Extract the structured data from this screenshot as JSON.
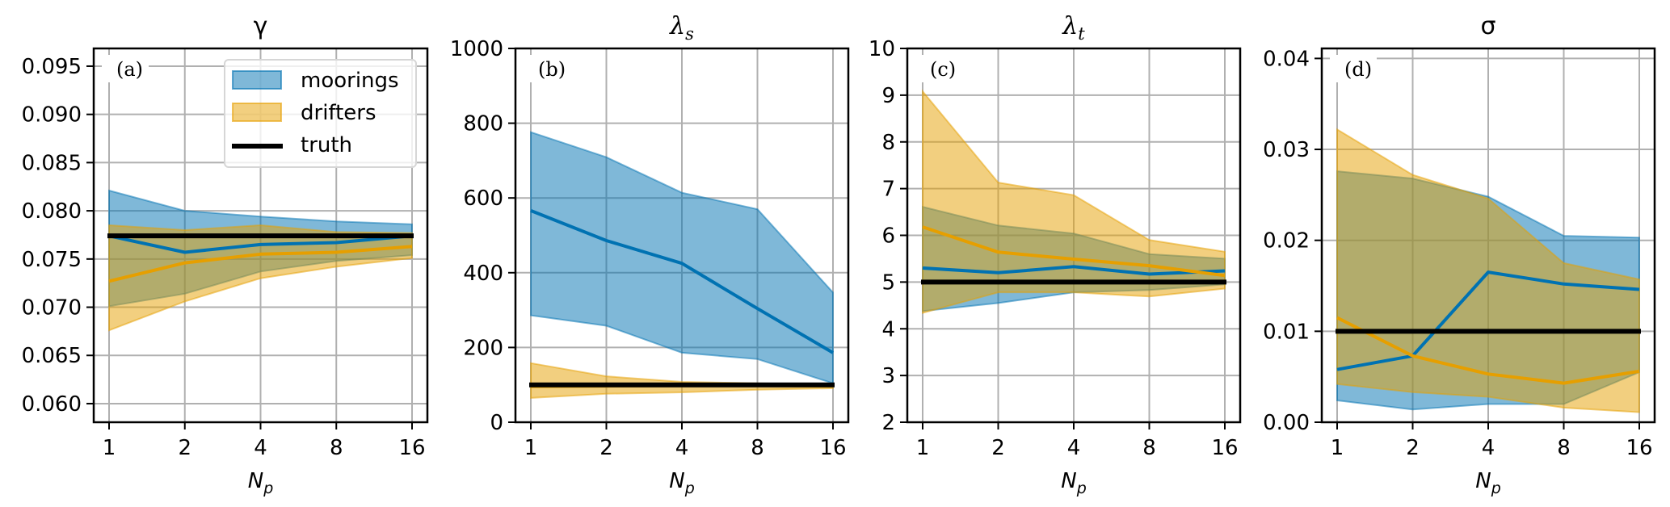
{
  "chart_data": {
    "type": "area",
    "x": [
      1,
      2,
      4,
      8,
      16
    ],
    "x_tick_labels": [
      "1",
      "2",
      "4",
      "8",
      "16"
    ],
    "xscale": "log2",
    "xlabel": "N_p",
    "grid": true,
    "colors": {
      "moorings": "#0072B2",
      "drifters": "#E69F00",
      "truth": "#000000",
      "fill_alpha": 0.5
    },
    "legend": {
      "panel": "a",
      "placement": "upper-right",
      "entries": [
        {
          "label": "moorings",
          "kind": "band",
          "series": "moorings"
        },
        {
          "label": "drifters",
          "kind": "band",
          "series": "drifters"
        },
        {
          "label": "truth",
          "kind": "line",
          "series": "truth"
        }
      ]
    },
    "panels": [
      {
        "id": "a",
        "panel_label": "(a)",
        "title": "γ",
        "title_sub": "",
        "ylim": [
          0.05807,
          0.09684
        ],
        "yticks": [
          0.06,
          0.065,
          0.07,
          0.075,
          0.08,
          0.085,
          0.09,
          0.095
        ],
        "ytick_labels": [
          "0.060",
          "0.065",
          "0.070",
          "0.075",
          "0.080",
          "0.085",
          "0.090",
          "0.095"
        ],
        "truth": 0.0774,
        "series": [
          {
            "name": "moorings",
            "median": [
              0.0774,
              0.0757,
              0.0765,
              0.0767,
              0.0774
            ],
            "lower": [
              0.0701,
              0.0714,
              0.0737,
              0.0748,
              0.0754
            ],
            "upper": [
              0.0821,
              0.08,
              0.0794,
              0.0789,
              0.0786
            ]
          },
          {
            "name": "drifters",
            "median": [
              0.0727,
              0.0746,
              0.0755,
              0.0757,
              0.0763
            ],
            "lower": [
              0.0676,
              0.0706,
              0.073,
              0.0742,
              0.0751
            ],
            "upper": [
              0.0785,
              0.078,
              0.0785,
              0.0778,
              0.0777
            ]
          }
        ]
      },
      {
        "id": "b",
        "panel_label": "(b)",
        "title": "λ",
        "title_sub": "s",
        "ylim": [
          0,
          1000
        ],
        "yticks": [
          0,
          200,
          400,
          600,
          800,
          1000
        ],
        "ytick_labels": [
          "0",
          "200",
          "400",
          "600",
          "800",
          "1000"
        ],
        "truth": 100,
        "series": [
          {
            "name": "moorings",
            "median": [
              566,
              486,
              425,
              304,
              186
            ],
            "lower": [
              286,
              258,
              186,
              169,
              104
            ],
            "upper": [
              776,
              709,
              614,
              570,
              347
            ]
          },
          {
            "name": "drifters",
            "median": [
              96,
              97,
              98,
              98,
              97
            ],
            "lower": [
              65,
              76,
              80,
              87,
              91
            ],
            "upper": [
              158,
              123,
              108,
              104,
              101
            ]
          }
        ]
      },
      {
        "id": "c",
        "panel_label": "(c)",
        "title": "λ",
        "title_sub": "t",
        "ylim": [
          2,
          10
        ],
        "yticks": [
          2,
          3,
          4,
          5,
          6,
          7,
          8,
          9,
          10
        ],
        "ytick_labels": [
          "2",
          "3",
          "4",
          "5",
          "6",
          "7",
          "8",
          "9",
          "10"
        ],
        "truth": 5,
        "series": [
          {
            "name": "moorings",
            "median": [
              5.3,
              5.2,
              5.33,
              5.17,
              5.24
            ],
            "lower": [
              4.38,
              4.55,
              4.78,
              4.83,
              4.95
            ],
            "upper": [
              6.61,
              6.21,
              6.04,
              5.6,
              5.5
            ]
          },
          {
            "name": "drifters",
            "median": [
              6.18,
              5.64,
              5.49,
              5.35,
              5.14
            ],
            "lower": [
              4.34,
              4.78,
              4.78,
              4.69,
              4.86
            ],
            "upper": [
              9.08,
              7.13,
              6.86,
              5.9,
              5.65
            ]
          }
        ]
      },
      {
        "id": "d",
        "panel_label": "(d)",
        "title": "σ",
        "title_sub": "",
        "ylim": [
          0,
          0.0411
        ],
        "yticks": [
          0.0,
          0.01,
          0.02,
          0.03,
          0.04
        ],
        "ytick_labels": [
          "0.00",
          "0.01",
          "0.02",
          "0.03",
          "0.04"
        ],
        "truth": 0.01,
        "series": [
          {
            "name": "moorings",
            "median": [
              0.0058,
              0.0073,
              0.0165,
              0.0152,
              0.0146
            ],
            "lower": [
              0.0024,
              0.0014,
              0.002,
              0.002,
              0.0055
            ],
            "upper": [
              0.0276,
              0.0268,
              0.0248,
              0.0205,
              0.0203
            ]
          },
          {
            "name": "drifters",
            "median": [
              0.0115,
              0.0073,
              0.0053,
              0.0043,
              0.0056
            ],
            "lower": [
              0.0042,
              0.0033,
              0.0028,
              0.0016,
              0.0011
            ],
            "upper": [
              0.0322,
              0.0272,
              0.0246,
              0.0175,
              0.0157
            ]
          }
        ]
      }
    ]
  }
}
